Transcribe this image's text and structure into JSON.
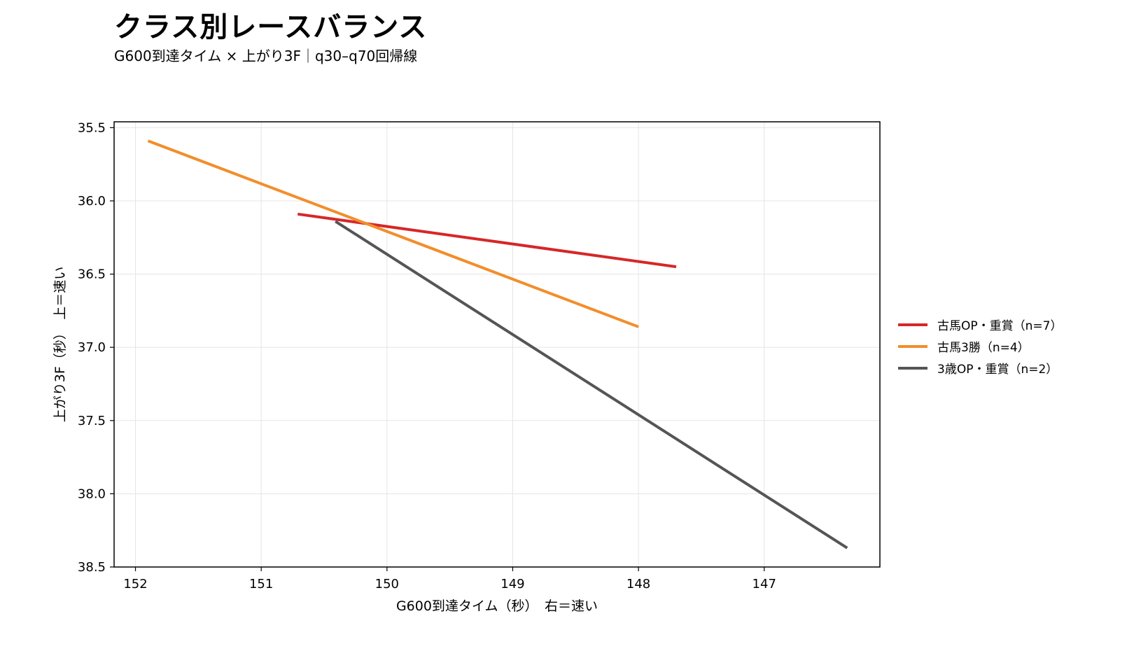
{
  "title": "クラス別レースバランス",
  "subtitle": "G600到達タイム × 上がり3F｜q30–q70回帰線",
  "chart_data": {
    "type": "line",
    "xlabel": "G600到達タイム（秒）　右＝速い",
    "ylabel": "上がり3F（秒）　上＝速い",
    "x_inverted": true,
    "y_inverted": true,
    "xlim": [
      152.17,
      146.08
    ],
    "ylim": [
      38.5,
      35.46
    ],
    "x_ticks": [
      152,
      151,
      150,
      149,
      148,
      147
    ],
    "x_tick_labels": [
      "152",
      "151",
      "150",
      "149",
      "148",
      "147"
    ],
    "y_ticks": [
      35.5,
      36.0,
      36.5,
      37.0,
      37.5,
      38.0,
      38.5
    ],
    "y_tick_labels": [
      "35.5",
      "36.0",
      "36.5",
      "37.0",
      "37.5",
      "38.0",
      "38.5"
    ],
    "grid": true,
    "legend_position": "right",
    "series": [
      {
        "name": "古馬OP・重賞（n=7）",
        "color": "#d62728",
        "x": [
          150.71,
          147.7
        ],
        "y": [
          36.09,
          36.45
        ]
      },
      {
        "name": "古馬3勝（n=4）",
        "color": "#f28e2b",
        "x": [
          151.9,
          148.0
        ],
        "y": [
          35.59,
          36.86
        ]
      },
      {
        "name": "3歳OP・重賞（n=2）",
        "color": "#555555",
        "x": [
          150.41,
          146.34
        ],
        "y": [
          36.14,
          38.37
        ]
      }
    ]
  }
}
